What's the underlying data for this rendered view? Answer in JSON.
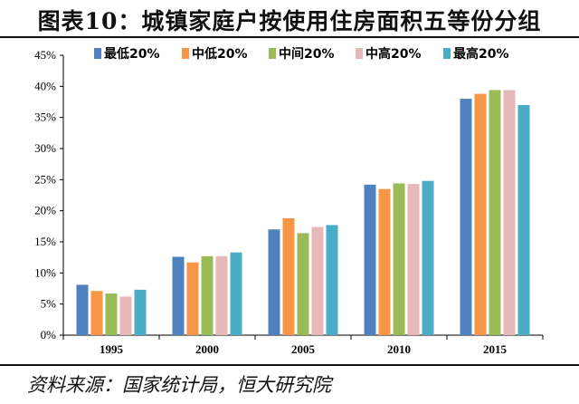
{
  "title": "图表10：城镇家庭户按使用住房面积五等份分组",
  "source": "资料来源：国家统计局，恒大研究院",
  "chart_data": {
    "type": "bar",
    "categories": [
      "1995",
      "2000",
      "2005",
      "2010",
      "2015"
    ],
    "series": [
      {
        "name": "最低20%",
        "color": "#4f81bd",
        "values": [
          8.1,
          12.6,
          17.0,
          24.2,
          38.0
        ]
      },
      {
        "name": "中低20%",
        "color": "#f79646",
        "values": [
          7.1,
          11.7,
          18.8,
          23.5,
          38.8
        ]
      },
      {
        "name": "中间20%",
        "color": "#9bbb59",
        "values": [
          6.7,
          12.7,
          16.4,
          24.4,
          39.4
        ]
      },
      {
        "name": "中高20%",
        "color": "#e6b9b8",
        "values": [
          6.2,
          12.7,
          17.4,
          24.3,
          39.4
        ]
      },
      {
        "name": "最高20%",
        "color": "#4bacc6",
        "values": [
          7.3,
          13.3,
          17.7,
          24.8,
          37.0
        ]
      }
    ],
    "yticks": [
      "0%",
      "5%",
      "10%",
      "15%",
      "20%",
      "25%",
      "30%",
      "35%",
      "40%",
      "45%"
    ],
    "ylim": [
      0,
      45
    ],
    "legend": "top",
    "grid": false
  }
}
